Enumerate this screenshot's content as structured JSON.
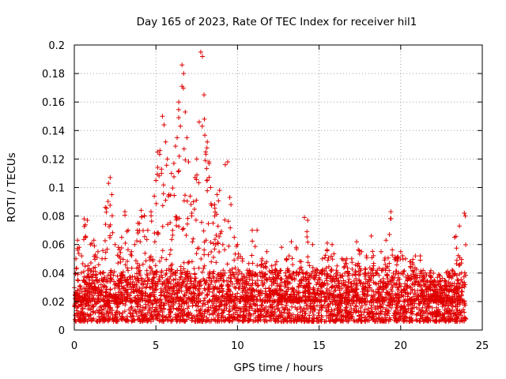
{
  "chart_data": {
    "type": "scatter",
    "title": "Day 165 of 2023, Rate Of TEC Index for receiver hil1",
    "xlabel": "GPS time / hours",
    "ylabel": "ROTI / TECUs",
    "xlim": [
      0,
      25
    ],
    "ylim": [
      0,
      0.2
    ],
    "xticks": [
      0,
      5,
      10,
      15,
      20,
      25
    ],
    "xtick_labels": [
      "0",
      "5",
      "10",
      "15",
      "20",
      "25"
    ],
    "yticks": [
      0,
      0.02,
      0.04,
      0.06,
      0.08,
      0.1,
      0.12,
      0.14,
      0.16,
      0.18,
      0.2
    ],
    "ytick_labels": [
      "0",
      "0.02",
      "0.04",
      "0.06",
      "0.08",
      "0.1",
      "0.12",
      "0.14",
      "0.16",
      "0.18",
      "0.2"
    ],
    "grid": true,
    "marker": "+",
    "color": "#e00000",
    "series": [
      {
        "name": "ROTI",
        "x": [
          0.1,
          0.2,
          0.3,
          0.45,
          0.6,
          0.8,
          1.0,
          1.2,
          1.45,
          1.7,
          1.9,
          2.1,
          2.2,
          2.3,
          2.5,
          2.7,
          2.9,
          3.1,
          3.3,
          3.5,
          3.7,
          3.9,
          4.1,
          4.3,
          4.5,
          4.7,
          4.9,
          5.0,
          5.1,
          5.25,
          5.4,
          5.5,
          5.6,
          5.7,
          5.8,
          5.95,
          6.1,
          6.2,
          6.3,
          6.4,
          6.5,
          6.6,
          6.7,
          6.8,
          6.9,
          7.0,
          7.1,
          7.2,
          7.3,
          7.4,
          7.5,
          7.65,
          7.75,
          7.85,
          7.95,
          8.05,
          8.15,
          8.25,
          8.35,
          8.5,
          8.6,
          8.75,
          8.9,
          9.1,
          9.25,
          9.4,
          9.6,
          9.8,
          10.0,
          10.3,
          10.6,
          10.9,
          11.2,
          11.5,
          11.8,
          12.1,
          12.4,
          12.7,
          13.0,
          13.3,
          13.6,
          13.9,
          14.1,
          14.3,
          14.6,
          14.9,
          15.2,
          15.5,
          15.8,
          16.1,
          16.4,
          16.7,
          17.0,
          17.3,
          17.6,
          17.9,
          18.2,
          18.5,
          18.8,
          19.1,
          19.4,
          19.7,
          20.0,
          20.3,
          20.6,
          20.9,
          21.2,
          21.5,
          21.8,
          22.1,
          22.4,
          22.7,
          23.0,
          23.3,
          23.6,
          23.9
        ],
        "y": [
          0.05,
          0.063,
          0.058,
          0.052,
          0.078,
          0.077,
          0.06,
          0.063,
          0.055,
          0.05,
          0.086,
          0.103,
          0.107,
          0.095,
          0.06,
          0.058,
          0.065,
          0.083,
          0.07,
          0.055,
          0.06,
          0.075,
          0.084,
          0.08,
          0.07,
          0.083,
          0.094,
          0.105,
          0.125,
          0.126,
          0.15,
          0.144,
          0.132,
          0.12,
          0.095,
          0.11,
          0.117,
          0.129,
          0.135,
          0.16,
          0.143,
          0.186,
          0.18,
          0.153,
          0.135,
          0.118,
          0.094,
          0.082,
          0.09,
          0.107,
          0.12,
          0.146,
          0.195,
          0.192,
          0.165,
          0.125,
          0.132,
          0.118,
          0.1,
          0.075,
          0.088,
          0.095,
          0.098,
          0.06,
          0.116,
          0.118,
          0.088,
          0.065,
          0.06,
          0.05,
          0.042,
          0.07,
          0.07,
          0.05,
          0.055,
          0.045,
          0.048,
          0.058,
          0.05,
          0.062,
          0.058,
          0.048,
          0.079,
          0.077,
          0.06,
          0.042,
          0.05,
          0.061,
          0.06,
          0.045,
          0.05,
          0.05,
          0.05,
          0.062,
          0.055,
          0.052,
          0.066,
          0.04,
          0.055,
          0.063,
          0.083,
          0.05,
          0.055,
          0.05,
          0.048,
          0.052,
          0.052,
          0.04,
          0.04,
          0.03,
          0.038,
          0.035,
          0.04,
          0.065,
          0.073,
          0.082
        ]
      }
    ],
    "note": "Dense red '+' markers fill a baseline band between about 0.005 and 0.04 ROTI across 0–24 h; the listed points mark the upper envelope / peaks."
  }
}
